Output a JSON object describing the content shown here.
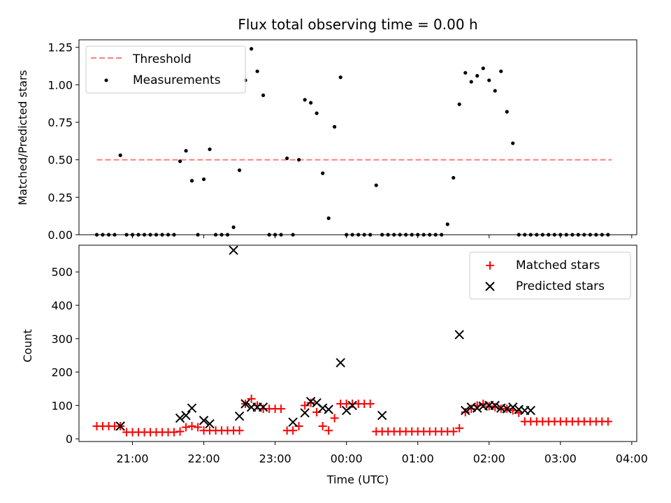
{
  "chart_data": [
    {
      "type": "scatter",
      "title": "Flux total observing time = 0.00 h",
      "xlabel": "",
      "ylabel": "Matched/Predicted stars",
      "xlim": [
        20.25,
        28.07
      ],
      "ylim": [
        0,
        1.3
      ],
      "yticks": [
        0,
        0.25,
        0.5,
        0.75,
        1.0,
        1.25
      ],
      "ytick_labels": [
        "0.00",
        "0.25",
        "0.50",
        "0.75",
        "1.00",
        "1.25"
      ],
      "xticks": [
        21,
        22,
        23,
        24,
        25,
        26,
        27,
        28
      ],
      "legend": {
        "position": "top-left",
        "entries": [
          "Threshold",
          "Measurements"
        ]
      },
      "threshold": {
        "name": "Threshold",
        "value": 0.5,
        "x_range": [
          20.5,
          27.72
        ],
        "color": "#ff7f7f"
      },
      "series": [
        {
          "name": "Measurements",
          "color": "#000000",
          "x": [
            20.5,
            20.583,
            20.667,
            20.75,
            20.83,
            20.917,
            21.0,
            21.083,
            21.167,
            21.25,
            21.333,
            21.417,
            21.5,
            21.583,
            21.667,
            21.75,
            21.833,
            21.917,
            22.0,
            22.083,
            22.167,
            22.25,
            22.333,
            22.417,
            22.5,
            22.583,
            22.667,
            22.75,
            22.833,
            22.917,
            23.0,
            23.083,
            23.167,
            23.25,
            23.333,
            23.417,
            23.5,
            23.583,
            23.667,
            23.75,
            23.833,
            23.917,
            24.0,
            24.083,
            24.167,
            24.25,
            24.333,
            24.417,
            24.5,
            24.583,
            24.667,
            24.75,
            24.833,
            24.917,
            25.0,
            25.083,
            25.167,
            25.25,
            25.333,
            25.417,
            25.5,
            25.583,
            25.667,
            25.75,
            25.833,
            25.917,
            26.0,
            26.083,
            26.167,
            26.25,
            26.333,
            26.417,
            26.5,
            26.583,
            26.667,
            26.75,
            26.833,
            26.917,
            27.0,
            27.083,
            27.167,
            27.25,
            27.333,
            27.417,
            27.5,
            27.583,
            27.667
          ],
          "y": [
            0,
            0,
            0,
            0,
            0.53,
            0,
            0,
            0,
            0,
            0,
            0,
            0,
            0,
            0,
            0.49,
            0.56,
            0.36,
            0,
            0.37,
            0.57,
            0,
            0,
            0,
            0.05,
            0.43,
            1.03,
            1.24,
            1.09,
            0.93,
            0,
            0,
            0,
            0.51,
            0,
            0.5,
            0.9,
            0.88,
            0.81,
            0.41,
            0.11,
            0.72,
            1.05,
            0,
            0,
            0,
            0,
            0,
            0.33,
            0,
            0,
            0,
            0,
            0,
            0,
            0,
            0,
            0,
            0,
            0,
            0.07,
            0.38,
            0.87,
            1.08,
            1.02,
            1.06,
            1.11,
            1.03,
            0.96,
            1.09,
            0.82,
            0.61,
            0,
            0,
            0,
            0,
            0,
            0,
            0,
            0,
            0,
            0,
            0,
            0,
            0,
            0,
            0,
            0
          ]
        }
      ]
    },
    {
      "type": "scatter",
      "title": "",
      "xlabel": "Time (UTC)",
      "ylabel": "Count",
      "xlim": [
        20.25,
        28.07
      ],
      "ylim": [
        -8,
        580
      ],
      "yticks": [
        0,
        100,
        200,
        300,
        400,
        500
      ],
      "ytick_labels": [
        "0",
        "100",
        "200",
        "300",
        "400",
        "500"
      ],
      "xticks": [
        21,
        22,
        23,
        24,
        25,
        26,
        27,
        28
      ],
      "xtick_labels": [
        "21:00",
        "22:00",
        "23:00",
        "00:00",
        "01:00",
        "02:00",
        "03:00",
        "04:00"
      ],
      "legend": {
        "position": "top-right",
        "entries": [
          "Matched stars",
          "Predicted stars"
        ]
      },
      "series": [
        {
          "name": "Matched stars",
          "marker": "plus",
          "color": "#ff0000",
          "x": [
            20.5,
            20.583,
            20.667,
            20.75,
            20.83,
            20.917,
            21.0,
            21.083,
            21.167,
            21.25,
            21.333,
            21.417,
            21.5,
            21.583,
            21.667,
            21.75,
            21.833,
            21.917,
            22.0,
            22.083,
            22.167,
            22.25,
            22.333,
            22.417,
            22.5,
            22.583,
            22.667,
            22.75,
            22.833,
            22.917,
            23.0,
            23.083,
            23.167,
            23.25,
            23.333,
            23.417,
            23.5,
            23.583,
            23.667,
            23.75,
            23.833,
            23.917,
            24.0,
            24.083,
            24.167,
            24.25,
            24.333,
            24.417,
            24.5,
            24.583,
            24.667,
            24.75,
            24.833,
            24.917,
            25.0,
            25.083,
            25.167,
            25.25,
            25.333,
            25.417,
            25.5,
            25.583,
            25.667,
            25.75,
            25.833,
            25.917,
            26.0,
            26.083,
            26.167,
            26.25,
            26.333,
            26.417,
            26.5,
            26.583,
            26.667,
            26.75,
            26.833,
            26.917,
            27.0,
            27.083,
            27.167,
            27.25,
            27.333,
            27.417,
            27.5,
            27.583,
            27.667
          ],
          "y": [
            38,
            38,
            38,
            38,
            38,
            20,
            20,
            20,
            20,
            20,
            20,
            20,
            20,
            20,
            22,
            35,
            38,
            35,
            25,
            25,
            25,
            25,
            25,
            25,
            25,
            105,
            120,
            100,
            90,
            90,
            90,
            90,
            25,
            25,
            38,
            100,
            108,
            80,
            38,
            25,
            62,
            105,
            105,
            105,
            105,
            105,
            105,
            22,
            22,
            22,
            22,
            22,
            22,
            22,
            22,
            22,
            22,
            22,
            22,
            22,
            22,
            32,
            80,
            90,
            100,
            105,
            98,
            95,
            90,
            90,
            85,
            78,
            52,
            52,
            52,
            52,
            52,
            52,
            52,
            52,
            52,
            52,
            52,
            52,
            52,
            52,
            52
          ]
        },
        {
          "name": "Predicted stars",
          "marker": "x",
          "color": "#000000",
          "x": [
            20.83,
            21.667,
            21.75,
            21.833,
            22.0,
            22.083,
            22.417,
            22.5,
            22.583,
            22.667,
            22.75,
            22.833,
            23.25,
            23.417,
            23.5,
            23.583,
            23.667,
            23.75,
            23.917,
            24.0,
            24.083,
            24.5,
            25.583,
            25.667,
            25.75,
            25.833,
            25.917,
            26.0,
            26.083,
            26.167,
            26.25,
            26.333,
            26.417,
            26.5,
            26.583
          ],
          "y": [
            38,
            62,
            70,
            92,
            55,
            45,
            565,
            68,
            105,
            95,
            95,
            95,
            50,
            78,
            112,
            108,
            92,
            88,
            228,
            85,
            100,
            70,
            312,
            85,
            95,
            92,
            98,
            100,
            100,
            92,
            90,
            95,
            88,
            85,
            85
          ]
        }
      ]
    }
  ]
}
